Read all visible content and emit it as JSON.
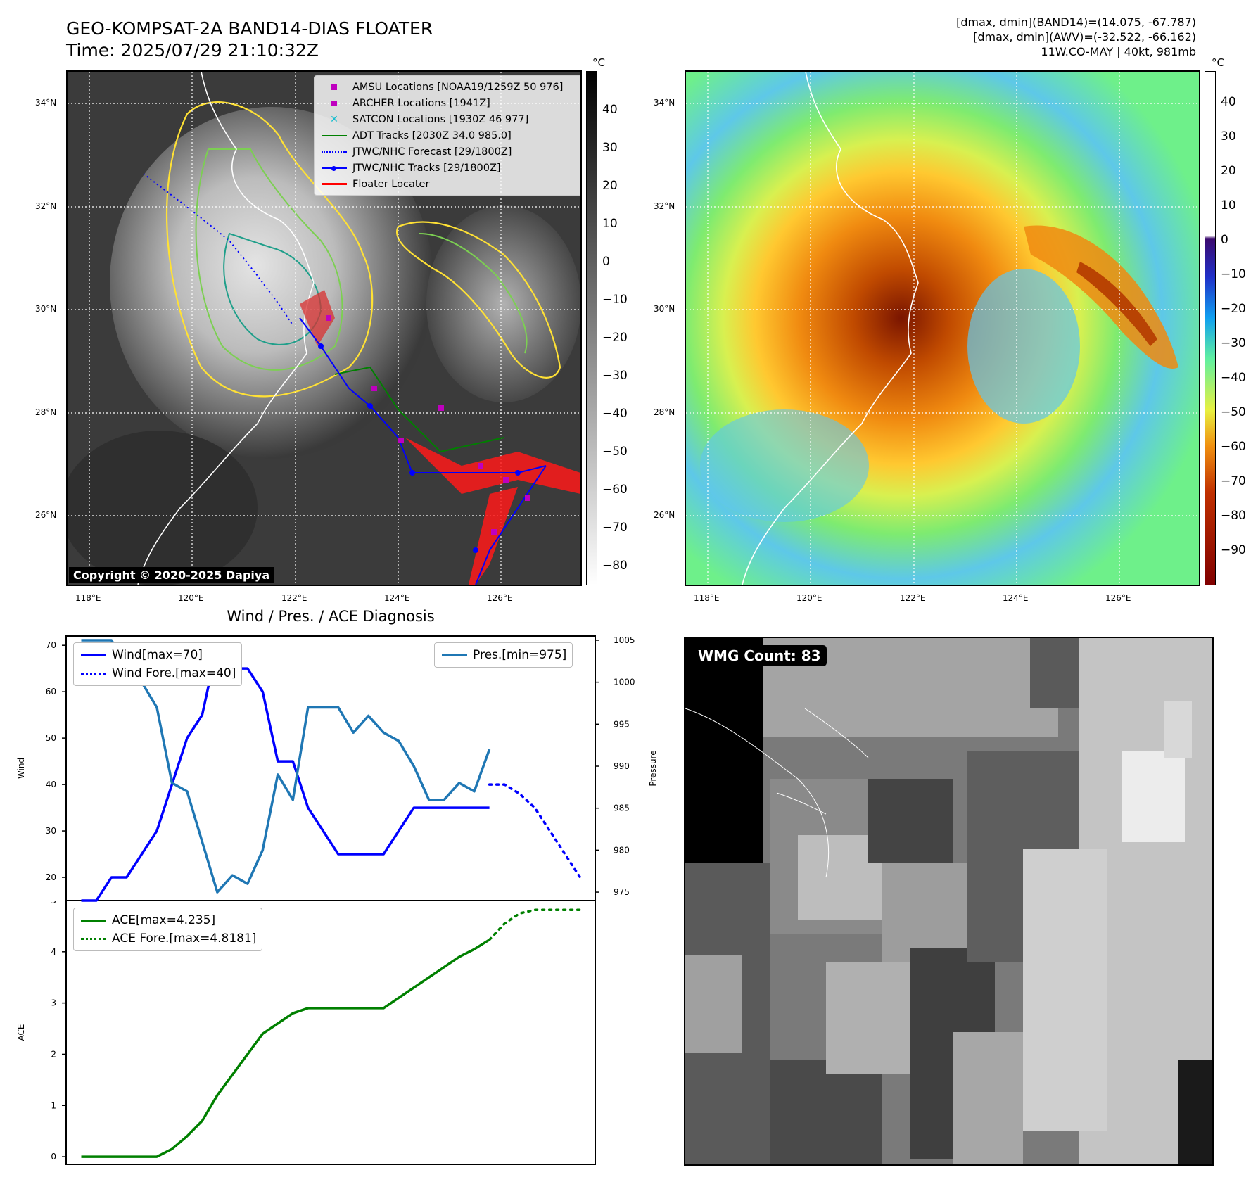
{
  "header": {
    "title_line1": "GEO-KOMPSAT-2A BAND14-DIAS FLOATER",
    "title_line2": "Time: 2025/07/29 21:10:32Z",
    "stats_line1": "[dmax, dmin](BAND14)=(14.075, -67.787)",
    "stats_line2": "[dmax, dmin](AWV)=(-32.522, -66.162)",
    "stats_line3": "11W.CO-MAY | 40kt, 981mb"
  },
  "ir_panel": {
    "copyright": "Copyright © 2020-2025 Dapiya",
    "lat_labels": [
      "34°N",
      "32°N",
      "30°N",
      "28°N",
      "26°N"
    ],
    "lon_labels": [
      "118°E",
      "120°E",
      "122°E",
      "124°E",
      "126°E"
    ],
    "colorbar_unit": "°C",
    "colorbar_ticks": [
      "40",
      "30",
      "20",
      "10",
      "0",
      "−10",
      "−20",
      "−30",
      "−40",
      "−50",
      "−60",
      "−70",
      "−80"
    ],
    "legend": [
      {
        "label": "AMSU Locations [NOAA19/1259Z 50 976]",
        "marker": "square",
        "color": "#bf00bf"
      },
      {
        "label": "ARCHER Locations [1941Z]",
        "marker": "square",
        "color": "#bf00bf"
      },
      {
        "label": "SATCON Locations [1930Z 46 977]",
        "marker": "x",
        "color": "#17becf"
      },
      {
        "label": "ADT Tracks [2030Z 34.0 985.0]",
        "marker": "line",
        "color": "#008000"
      },
      {
        "label": "JTWC/NHC Forecast [29/1800Z]",
        "marker": "dotted",
        "color": "#0000ff"
      },
      {
        "label": "JTWC/NHC Tracks [29/1800Z]",
        "marker": "line-dot",
        "color": "#0000ff"
      },
      {
        "label": "Floater Locater",
        "marker": "line",
        "color": "#ff0000"
      }
    ]
  },
  "wv_panel": {
    "lat_labels": [
      "34°N",
      "32°N",
      "30°N",
      "28°N",
      "26°N"
    ],
    "lon_labels": [
      "118°E",
      "120°E",
      "122°E",
      "124°E",
      "126°E"
    ],
    "colorbar_unit": "°C",
    "colorbar_ticks": [
      "40",
      "30",
      "20",
      "10",
      "0",
      "−10",
      "−20",
      "−30",
      "−40",
      "−50",
      "−60",
      "−70",
      "−80",
      "−90"
    ]
  },
  "wmg_panel": {
    "badge": "WMG Count: 83"
  },
  "chart_data": [
    {
      "type": "line",
      "title": "Wind / Pres. / ACE Diagnosis",
      "ylabel": "Wind",
      "y2label": "Pressure",
      "ylim": [
        15,
        72
      ],
      "y2lim": [
        974,
        1005.5
      ],
      "yticks": [
        "70",
        "60",
        "50",
        "40",
        "30",
        "20"
      ],
      "y2ticks": [
        "1005",
        "1000",
        "995",
        "990",
        "985",
        "980",
        "975"
      ],
      "series": [
        {
          "name": "Wind[max=70]",
          "color": "#0000ff",
          "style": "solid",
          "x": [
            0,
            1,
            2,
            3,
            4,
            5,
            6,
            7,
            8,
            9,
            10,
            11,
            12,
            13,
            14,
            15,
            16,
            17,
            18,
            19,
            20,
            21,
            22,
            23,
            24,
            25,
            26,
            27
          ],
          "values": [
            15,
            15,
            20,
            20,
            25,
            30,
            40,
            50,
            55,
            70,
            65,
            65,
            60,
            45,
            45,
            35,
            30,
            25,
            25,
            25,
            25,
            30,
            35,
            35,
            35,
            35,
            35,
            35
          ]
        },
        {
          "name": "Wind Fore.[max=40]",
          "color": "#0000ff",
          "style": "dotted",
          "x": [
            27,
            28,
            29,
            30,
            31,
            32,
            33
          ],
          "values": [
            40,
            40,
            38,
            35,
            30,
            25,
            20
          ]
        },
        {
          "name": "Pres.[min=975]",
          "color": "#1f77b4",
          "style": "solid",
          "x": [
            0,
            1,
            2,
            3,
            4,
            5,
            6,
            7,
            8,
            9,
            10,
            11,
            12,
            13,
            14,
            15,
            16,
            17,
            18,
            19,
            20,
            21,
            22,
            23,
            24,
            25,
            26,
            27
          ],
          "values": [
            1005,
            1005,
            1005,
            1002,
            1000,
            997,
            988,
            987,
            981,
            975,
            977,
            976,
            980,
            989,
            986,
            997,
            997,
            997,
            994,
            996,
            994,
            993,
            990,
            986,
            986,
            988,
            987,
            992
          ]
        }
      ]
    },
    {
      "type": "line",
      "ylabel": "ACE",
      "ylim": [
        -0.15,
        5
      ],
      "yticks": [
        "5",
        "4",
        "3",
        "2",
        "1",
        "0"
      ],
      "series": [
        {
          "name": "ACE[max=4.235]",
          "color": "#008000",
          "style": "solid",
          "x": [
            0,
            1,
            2,
            3,
            4,
            5,
            6,
            7,
            8,
            9,
            10,
            11,
            12,
            13,
            14,
            15,
            16,
            17,
            18,
            19,
            20,
            21,
            22,
            23,
            24,
            25,
            26,
            27
          ],
          "values": [
            0,
            0,
            0,
            0,
            0,
            0,
            0.15,
            0.4,
            0.7,
            1.2,
            1.6,
            2.0,
            2.4,
            2.6,
            2.8,
            2.9,
            2.9,
            2.9,
            2.9,
            2.9,
            2.9,
            3.1,
            3.3,
            3.5,
            3.7,
            3.9,
            4.05,
            4.235
          ]
        },
        {
          "name": "ACE Fore.[max=4.8181]",
          "color": "#008000",
          "style": "dotted",
          "x": [
            27,
            28,
            29,
            30,
            31,
            32,
            33
          ],
          "values": [
            4.235,
            4.55,
            4.75,
            4.8181,
            4.8181,
            4.8181,
            4.8181
          ]
        }
      ]
    }
  ]
}
